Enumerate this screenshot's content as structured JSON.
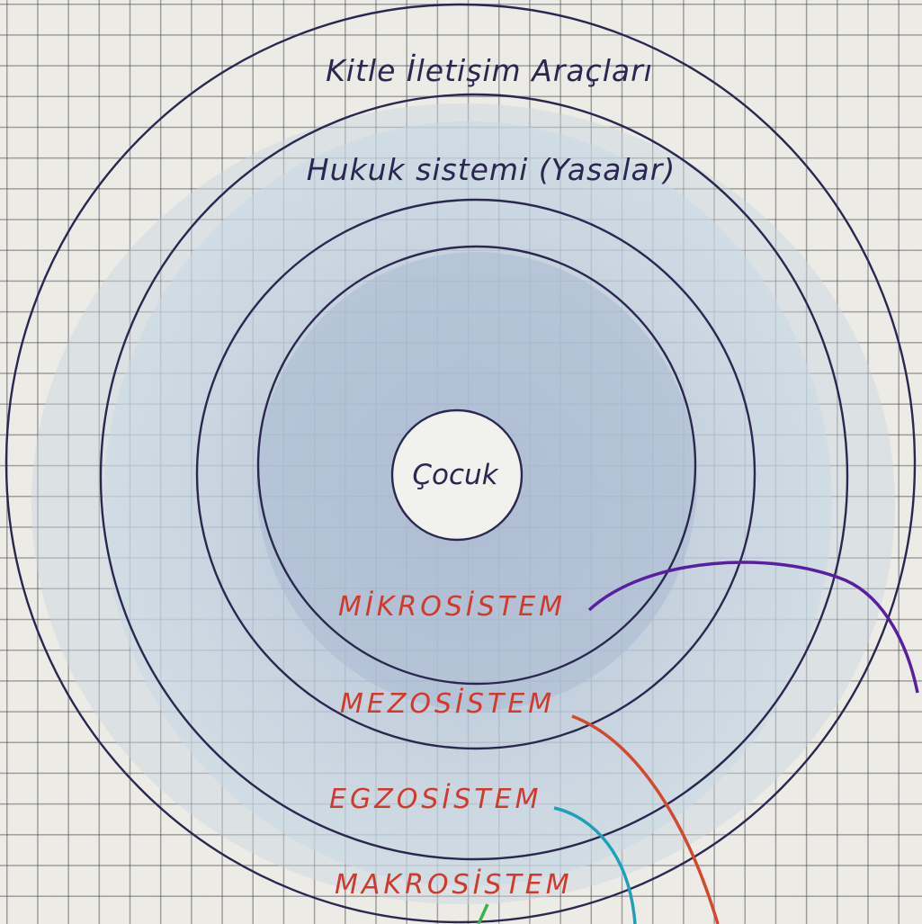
{
  "diagram": {
    "center_label": "Çocuk",
    "outer_ring_label": "Kitle İletişim Araçları",
    "second_ring_label": "Hukuk sistemi (Yasalar)",
    "system_labels": {
      "micro": "MİKROSİSTEM",
      "meso": "MEZOSİSTEM",
      "exo": "EGZOSİSTEM",
      "macro": "MAKROSİSTEM"
    },
    "colors": {
      "ink": "#2a2750",
      "label_red": "#cf3a2c",
      "fill_light": "#c9d8e3",
      "fill_mid": "#b9c9dc",
      "fill_dark": "#aab9d1",
      "micro_connector": "#5a1f9e",
      "meso_connector": "#d4482f",
      "exo_connector": "#1f9fb8",
      "macro_connector": "#3fae4f"
    }
  }
}
